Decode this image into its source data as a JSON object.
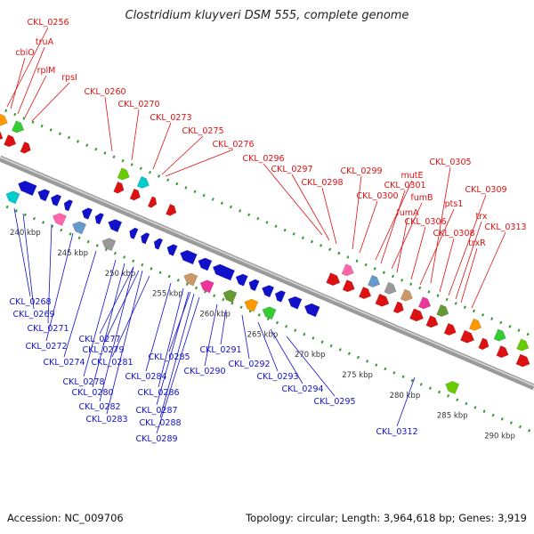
{
  "title": "Clostridium kluyveri DSM 555, complete genome",
  "footer": {
    "accession": "Accession: NC_009706",
    "summary": "Topology: circular; Length: 3,964,618 bp; Genes: 3,919"
  },
  "axis_labels": [
    "240 kbp",
    "245 kbp",
    "250 kbp",
    "255 kbp",
    "260 kbp",
    "265 kbp",
    "270 kbp",
    "275 kbp",
    "280 kbp",
    "285 kbp",
    "290 kbp"
  ],
  "colors": {
    "forward": "#dd1111",
    "reverse": "#1111cc",
    "backbone": "#888888",
    "ticks": "#339933"
  },
  "forward_labels": [
    "CKL_0256",
    "truA",
    "cbiO",
    "rplM",
    "rpsI",
    "CKL_0260",
    "CKL_0270",
    "CKL_0273",
    "CKL_0275",
    "CKL_0276",
    "CKL_0296",
    "CKL_0297",
    "CKL_0298",
    "CKL_0299",
    "CKL_0300",
    "mutE",
    "CKL_0301",
    "fumB",
    "fumA",
    "CKL_0305",
    "CKL_0306",
    "pts1",
    "CKL_0308",
    "CKL_0309",
    "trx",
    "trxR",
    "CKL_0313"
  ],
  "reverse_labels": [
    "CKL_0268",
    "CKL_0269",
    "CKL_0271",
    "CKL_0272",
    "CKL_0274",
    "CKL_0277",
    "CKL_0279",
    "CKL_0278",
    "CKL_0281",
    "CKL_0280",
    "CKL_0282",
    "CKL_0283",
    "CKL_0284",
    "CKL_0285",
    "CKL_0286",
    "CKL_0287",
    "CKL_0288",
    "CKL_0289",
    "CKL_0290",
    "CKL_0291",
    "CKL_0292",
    "CKL_0293",
    "CKL_0294",
    "CKL_0295",
    "CKL_0312"
  ]
}
